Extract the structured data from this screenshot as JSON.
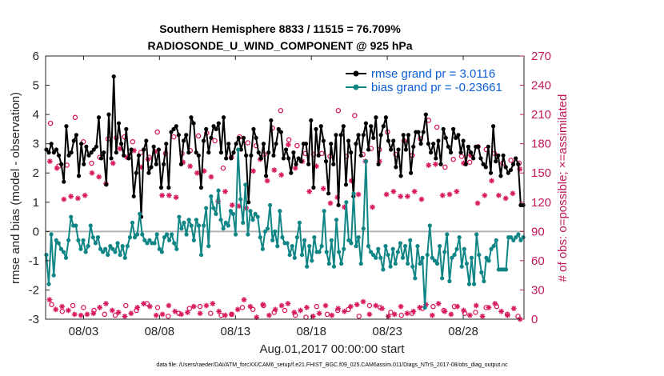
{
  "chart_data": {
    "type": "line",
    "title": "Southern Hemisphere 8833 / 11515 = 76.709%",
    "subtitle": "RADIOSONDE_U_WIND_COMPONENT @ 925 hPa",
    "xlabel": "Aug.01,2017 00:00:00 start",
    "ylabel": "rmse and bias (model - observation)",
    "ylabel_right": "# of obs: o=possible; ×=assimilated",
    "footer": "data file: /Users/raeder/DAI/ATM_forcXX/CAM6_setup/f.e21.FHIST_BGC.f09_025.CAM6assim.011/Diags_NTrS_2017-08/obs_diag_output.nc",
    "xlim": [
      0.5,
      32
    ],
    "ylim": [
      -3,
      6
    ],
    "ylim_right": [
      0,
      270
    ],
    "x_ticks": [
      3,
      8,
      13,
      18,
      23,
      28
    ],
    "x_tick_labels": [
      "08/03",
      "08/08",
      "08/13",
      "08/18",
      "08/23",
      "08/28"
    ],
    "y_ticks": [
      -3,
      -2,
      -1,
      0,
      1,
      2,
      3,
      4,
      5,
      6
    ],
    "y_ticks_right": [
      0,
      30,
      60,
      90,
      120,
      150,
      180,
      210,
      240,
      270
    ],
    "zero_line": 0,
    "legend_position": "top-right",
    "colors": {
      "rmse": "#000000",
      "bias": "#0f8585",
      "obs": "#d81b60",
      "zero": "#b3b3b3"
    },
    "series": [
      {
        "name": "rmse grand pr = 3.0116",
        "key": "rmse",
        "values": [
          2.8,
          2.7,
          3.0,
          2.7,
          2.8,
          2.6,
          2.3,
          1.7,
          3.6,
          2.6,
          2.7,
          3.1,
          3.3,
          1.9,
          3.0,
          2.3,
          2.9,
          2.6,
          2.7,
          2.8,
          2.9,
          3.9,
          2.5,
          2.7,
          1.6,
          4.0,
          2.5,
          5.3,
          2.7,
          3.7,
          3.0,
          2.6,
          3.5,
          2.5,
          2.8,
          1.2,
          2.0,
          2.6,
          0.5,
          2.8,
          3.1,
          2.0,
          2.2,
          2.9,
          2.3,
          2.8,
          1.5,
          2.3,
          3.0,
          1.5,
          3.4,
          3.5,
          3.6,
          3.3,
          2.3,
          3.1,
          3.3,
          2.7,
          3.9,
          3.7,
          2.7,
          2.6,
          1.5,
          3.1,
          3.5,
          2.7,
          3.2,
          3.6,
          3.5,
          3.7,
          2.7,
          3.9,
          2.5,
          3.0,
          2.5,
          2.7,
          3.0,
          3.2,
          2.8,
          3.2,
          2.6,
          1.0,
          2.6,
          3.5,
          3.2,
          2.7,
          2.5,
          3.0,
          1.9,
          2.7,
          3.8,
          2.6,
          3.0,
          3.5,
          3.4,
          2.5,
          2.8,
          2.5,
          2.0,
          2.7,
          2.3,
          2.5,
          2.4,
          3.0,
          3.0,
          2.3,
          3.8,
          1.5,
          3.5,
          2.6,
          3.6,
          3.1,
          2.4,
          1.3,
          3.0,
          2.3,
          3.3,
          0.9,
          3.3,
          3.6,
          1.6,
          3.1,
          2.7,
          1.2,
          3.0,
          3.3,
          2.6,
          3.3,
          3.7,
          2.8,
          3.6,
          3.2,
          3.9,
          2.3,
          3.3,
          3.6,
          3.9,
          3.1,
          2.8,
          3.1,
          2.2,
          2.8,
          1.9,
          3.3,
          2.8,
          3.3,
          2.0,
          2.9,
          3.4,
          3.4,
          3.0,
          3.4,
          4.0,
          3.0,
          2.7,
          3.0,
          2.5,
          3.1,
          2.3,
          3.5,
          3.2,
          2.9,
          2.7,
          3.5,
          3.2,
          3.3,
          2.7,
          3.1,
          2.3,
          2.9,
          2.7,
          2.5,
          2.9,
          2.9,
          2.5,
          2.3,
          2.2,
          2.9,
          2.0,
          3.6,
          2.4,
          2.6,
          1.9,
          2.6,
          2.2,
          2.0,
          2.1,
          2.3,
          2.5,
          2.3,
          0.9,
          0.9
        ]
      },
      {
        "name": "bias grand pr = -0.23661",
        "key": "bias",
        "values": [
          -0.8,
          -1.8,
          -0.1,
          -1.5,
          -0.3,
          -0.4,
          -0.6,
          -0.7,
          -0.9,
          -0.3,
          0.5,
          0.2,
          0.2,
          -0.3,
          -0.6,
          -0.3,
          -0.7,
          -0.5,
          0.2,
          -0.2,
          -0.4,
          -0.2,
          -0.6,
          -0.7,
          -0.6,
          -0.8,
          -0.5,
          -0.6,
          -0.7,
          -0.4,
          -0.8,
          -0.5,
          -0.9,
          -0.5,
          -0.2,
          0.3,
          -0.2,
          -0.1,
          0.6,
          -0.1,
          -0.3,
          -0.4,
          -0.3,
          -0.4,
          -0.4,
          -0.1,
          -0.6,
          -0.7,
          -0.2,
          -0.1,
          -0.3,
          -0.1,
          -0.4,
          -0.6,
          0.5,
          0.1,
          0.3,
          -0.1,
          0.4,
          0.2,
          -0.3,
          0.4,
          0.2,
          -0.8,
          0.2,
          0.8,
          -0.5,
          1.2,
          0.8,
          0.6,
          1.4,
          0.4,
          0.1,
          0.3,
          0.2,
          0.7,
          0.6,
          -0.1,
          2.8,
          1.1,
          0.3,
          1.6,
          -0.1,
          0.7,
          0.4,
          0.6,
          0.5,
          -0.2,
          -0.6,
          0.0,
          0.1,
          0.9,
          -0.3,
          0.0,
          -0.5,
          0.7,
          -0.2,
          -0.4,
          -0.4,
          -0.8,
          -0.5,
          -0.9,
          -0.2,
          0.3,
          -0.8,
          -0.3,
          -1.2,
          -0.5,
          -1.0,
          -0.2,
          -0.7,
          -0.7,
          -0.5,
          0.7,
          -0.7,
          -1.1,
          -0.3,
          -1.2,
          0.4,
          -0.7,
          -1.1,
          -0.6,
          1.0,
          -0.3,
          -0.4,
          1.3,
          -0.5,
          -0.2,
          -1.1,
          0.1,
          2.4,
          -0.5,
          -0.7,
          -0.8,
          -0.9,
          -0.6,
          -0.9,
          -1.3,
          -0.5,
          -0.8,
          -1.2,
          -0.6,
          -1.1,
          -0.7,
          -0.4,
          -0.9,
          -0.5,
          -1.1,
          -0.3,
          -1.2,
          -1.6,
          -0.5,
          -1.1,
          -0.9,
          -2.6,
          -0.8,
          0.2,
          -0.9,
          -1.0,
          -1.1,
          -0.5,
          -1.6,
          -0.7,
          -0.1,
          -1.7,
          -0.9,
          -0.8,
          -0.6,
          -0.2,
          -1.2,
          -0.6,
          -1.1,
          -1.8,
          -0.9,
          -1.8,
          -0.1,
          -0.8,
          -1.4,
          -1.7,
          -0.9,
          -1.0,
          -0.6,
          -0.5,
          -0.3,
          -1.3,
          -1.3,
          -1.3,
          -1.3,
          -0.2,
          -0.2,
          -0.3,
          -0.2,
          -0.1,
          -0.3,
          -0.2
        ]
      }
    ],
    "obs_possible": [
      201,
      157,
      158,
      207,
      182,
      160,
      166,
      185,
      186,
      187,
      182,
      171,
      166,
      192,
      170,
      187,
      170,
      173,
      188,
      191,
      183,
      155,
      166,
      187,
      181,
      178,
      169,
      196,
      214,
      184,
      178,
      170,
      169,
      170,
      167,
      214,
      167,
      209,
      169,
      175,
      174,
      192,
      169,
      183,
      168,
      185,
      204,
      197,
      156,
      164,
      167,
      161,
      177,
      174,
      170,
      160,
      163,
      160
    ],
    "obs_assimilated": [
      162,
      155,
      123,
      126,
      124,
      127,
      150,
      146,
      139,
      160,
      175,
      166,
      173,
      156,
      164,
      172,
      127,
      127,
      125,
      161,
      157,
      150,
      152,
      146,
      121,
      131,
      117,
      116,
      114,
      152,
      164,
      142,
      153,
      148,
      179,
      155,
      162,
      131,
      157,
      134,
      119,
      125,
      115,
      142,
      128,
      162,
      115,
      162,
      128,
      131,
      126,
      126,
      131,
      123,
      158,
      159,
      127,
      128,
      131,
      160,
      168,
      119,
      127,
      142,
      127,
      124,
      129,
      154
    ],
    "obs_possible_low": [
      15,
      8,
      14,
      12,
      9,
      5,
      4,
      14,
      9,
      16,
      12,
      3,
      6,
      11,
      13,
      6,
      4,
      5,
      12,
      10,
      14,
      7,
      9,
      4,
      2,
      13,
      5,
      9,
      10,
      3,
      14,
      12,
      7,
      4,
      6,
      11,
      13,
      9,
      13,
      6,
      7,
      12,
      13,
      5,
      3
    ],
    "obs_assimilated_low": [
      20,
      10,
      13,
      9,
      5,
      4,
      5,
      6,
      12,
      16,
      9,
      7,
      3,
      6,
      12,
      16,
      13,
      4,
      5,
      14,
      8,
      5,
      7,
      13,
      6,
      14,
      16,
      8,
      4,
      5,
      10,
      20,
      13,
      2,
      15,
      4,
      10,
      14,
      16,
      7,
      9,
      12,
      3,
      6,
      14,
      4,
      11,
      8,
      13,
      15,
      18,
      5,
      14,
      11,
      3,
      5,
      13,
      6,
      8,
      12,
      15,
      4,
      16,
      8,
      5,
      13,
      9,
      4,
      14,
      3,
      12,
      16,
      8,
      4,
      11,
      0
    ]
  }
}
